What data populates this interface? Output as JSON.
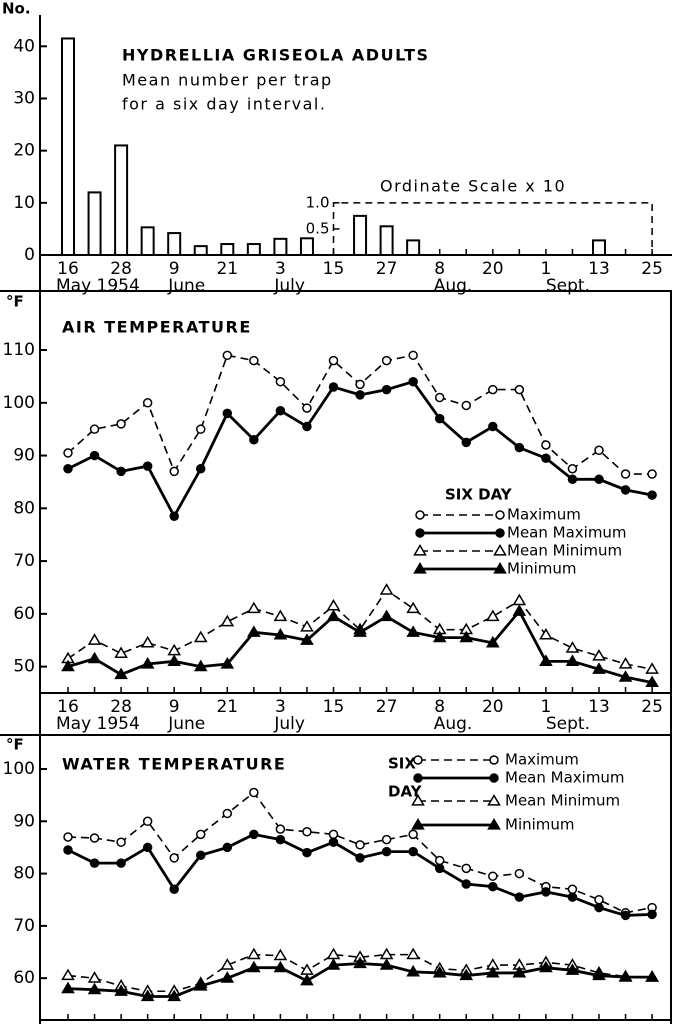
{
  "chart_data": [
    {
      "type": "bar",
      "title": "HYDRELLIA GRISEOLA ADULTS",
      "subtitle": [
        "Mean number per trap",
        "for a six day interval."
      ],
      "ylabel": "No.",
      "annotation": "Ordinate Scale x 10",
      "categories": [
        "16",
        null,
        "28",
        null,
        "9",
        null,
        "21",
        null,
        "3",
        null,
        "15",
        null,
        "27",
        null,
        "8",
        null,
        "20",
        null,
        "1",
        null,
        "13",
        null,
        "25"
      ],
      "months": [
        "May 1954",
        "June",
        "July",
        "Aug.",
        "Sept."
      ],
      "series": [
        {
          "color": "#000000",
          "values": [
            41.5,
            12,
            21,
            5.3,
            4.2,
            1.7,
            2.1,
            2.1,
            3.1,
            3.2,
            null,
            null,
            null,
            null,
            null,
            null,
            null,
            null,
            null,
            null,
            null,
            null,
            null
          ]
        },
        {
          "color": "#000000",
          "axis": "y2",
          "values": [
            null,
            null,
            null,
            null,
            null,
            null,
            null,
            null,
            null,
            null,
            null,
            0.75,
            0.55,
            0.28,
            null,
            null,
            null,
            null,
            null,
            null,
            0.28,
            null,
            null
          ]
        }
      ],
      "ylim": [
        0,
        46
      ],
      "yticks": [
        0,
        10,
        20,
        30,
        40
      ],
      "y2lim": [
        0,
        4.6
      ],
      "y2ticks": [
        0.5,
        {
          "value": 1,
          "label": "1.0"
        }
      ]
    },
    {
      "type": "line",
      "title": "AIR TEMPERATURE",
      "ylabel": "°F",
      "legend_title": [
        "SIX DAY"
      ],
      "categories": [
        "16",
        null,
        "28",
        null,
        "9",
        null,
        "21",
        null,
        "3",
        null,
        "15",
        null,
        "27",
        null,
        "8",
        null,
        "20",
        null,
        "1",
        null,
        "13",
        null,
        "25"
      ],
      "months": [
        "May 1954",
        "June",
        "July",
        "Aug.",
        "Sept."
      ],
      "ylim": [
        45,
        121
      ],
      "yticks": [
        50,
        60,
        70,
        80,
        90,
        100,
        110
      ],
      "series": [
        {
          "name": "Maximum",
          "color": "#000000",
          "dashed": true,
          "marker": "open-circle",
          "values": [
            90.5,
            95,
            96,
            100,
            87,
            95,
            109,
            108,
            104,
            99,
            108,
            103.5,
            108,
            109,
            101,
            99.5,
            102.5,
            102.5,
            92,
            87.5,
            91,
            86.5,
            86.5
          ]
        },
        {
          "name": "Mean Maximum",
          "color": "#000000",
          "dashed": false,
          "marker": "filled-circle",
          "values": [
            87.5,
            90,
            87,
            88,
            78.5,
            87.5,
            98,
            93,
            98.5,
            95.5,
            103,
            101.5,
            102.5,
            104,
            97,
            92.5,
            95.5,
            91.5,
            89.5,
            85.5,
            85.5,
            83.5,
            82.5
          ]
        },
        {
          "name": "Mean Minimum",
          "color": "#000000",
          "dashed": true,
          "marker": "open-triangle",
          "values": [
            51.5,
            55,
            52.5,
            54.5,
            53,
            55.5,
            58.5,
            61,
            59.5,
            57.5,
            61.5,
            57,
            64.5,
            61,
            57,
            57,
            59.5,
            62.5,
            56,
            53.5,
            52,
            50.5,
            49.5
          ]
        },
        {
          "name": "Minimum",
          "color": "#000000",
          "dashed": false,
          "marker": "filled-triangle",
          "values": [
            50,
            51.5,
            48.5,
            50.5,
            51,
            50,
            50.5,
            56.5,
            56,
            55,
            59.5,
            56.5,
            59.5,
            56.5,
            55.5,
            55.5,
            54.5,
            60.5,
            51,
            51,
            49.5,
            48,
            47
          ]
        }
      ]
    },
    {
      "type": "line",
      "title": "WATER TEMPERATURE",
      "ylabel": "°F",
      "legend_title": [
        "SIX",
        "DAY"
      ],
      "ylim": [
        52,
        106.5
      ],
      "yticks": [
        60,
        70,
        80,
        90,
        100
      ],
      "series": [
        {
          "name": "Maximum",
          "color": "#000000",
          "dashed": true,
          "marker": "open-circle",
          "values": [
            87,
            86.8,
            86,
            90,
            83,
            87.5,
            91.5,
            95.5,
            88.5,
            88,
            87.5,
            85.5,
            86.5,
            87.5,
            82.5,
            81,
            79.5,
            80,
            77.5,
            77,
            75,
            72.5,
            73.5
          ]
        },
        {
          "name": "Mean Maximum",
          "color": "#000000",
          "dashed": false,
          "marker": "filled-circle",
          "values": [
            84.5,
            82,
            82,
            85,
            77,
            83.5,
            85,
            87.5,
            86.5,
            84,
            86,
            83,
            84.2,
            84.2,
            81,
            78,
            77.5,
            75.5,
            76.5,
            75.5,
            73.5,
            72,
            72.2
          ]
        },
        {
          "name": "Mean Minimum",
          "color": "#000000",
          "dashed": true,
          "marker": "open-triangle",
          "values": [
            60.5,
            60,
            58.5,
            57.5,
            57.5,
            59,
            62.5,
            64.5,
            64.3,
            61.5,
            64.5,
            64,
            64.5,
            64.5,
            61.8,
            61.5,
            62.5,
            62.5,
            63,
            62.5,
            61,
            60.3,
            60.2
          ]
        },
        {
          "name": "Minimum",
          "color": "#000000",
          "dashed": false,
          "marker": "filled-triangle",
          "values": [
            58,
            57.8,
            57.5,
            56.5,
            56.5,
            58.5,
            60,
            62,
            62,
            59.5,
            62.5,
            62.8,
            62.5,
            61.2,
            61,
            60.5,
            61,
            61,
            62,
            61.5,
            60.5,
            60.2,
            60.2
          ]
        }
      ]
    }
  ]
}
